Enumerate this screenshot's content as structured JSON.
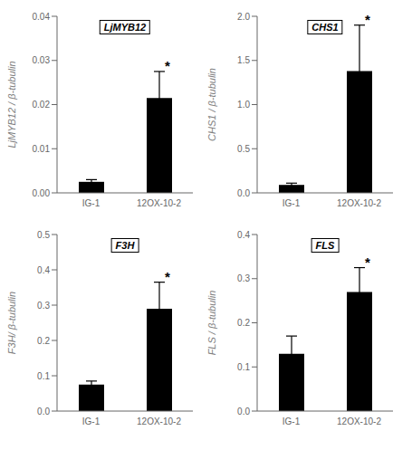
{
  "chart_data": [
    {
      "type": "bar",
      "ylabel": "LjMYB12 / β-tubulin",
      "categories": [
        "IG-1",
        "12OX-10-2"
      ],
      "values": [
        0.0025,
        0.0215
      ],
      "errors": [
        0.0005,
        0.006
      ],
      "ylim": [
        0,
        0.04
      ],
      "yticks": [
        {
          "value": 0,
          "label": "0.00"
        },
        0.01,
        0.02,
        0.03,
        0.04
      ],
      "color": "#000000",
      "grid": false,
      "annotations": [
        {
          "text": "LjMYB12"
        },
        {
          "text": "*",
          "category": "12OX-10-2"
        }
      ]
    },
    {
      "type": "bar",
      "ylabel": "CHS1 / β-tubulin",
      "categories": [
        "IG-1",
        "12OX-10-2"
      ],
      "values": [
        0.09,
        1.38
      ],
      "errors": [
        0.02,
        0.52
      ],
      "ylim": [
        0,
        2.0
      ],
      "yticks": [
        {
          "value": 0,
          "label": "0.0"
        },
        0.5,
        {
          "value": 1,
          "label": "1.0"
        },
        1.5,
        {
          "value": 2,
          "label": "2.0"
        }
      ],
      "color": "#000000",
      "grid": false,
      "annotations": [
        {
          "text": "CHS1"
        },
        {
          "text": "*",
          "category": "12OX-10-2"
        }
      ]
    },
    {
      "type": "bar",
      "ylabel": "F3H/ β-tubulin",
      "categories": [
        "IG-1",
        "12OX-10-2"
      ],
      "values": [
        0.075,
        0.29
      ],
      "errors": [
        0.01,
        0.075
      ],
      "ylim": [
        0,
        0.5
      ],
      "yticks": [
        {
          "value": 0,
          "label": "0.0"
        },
        0.1,
        0.2,
        0.3,
        0.4,
        0.5
      ],
      "color": "#000000",
      "grid": false,
      "annotations": [
        {
          "text": "F3H"
        },
        {
          "text": "*",
          "category": "12OX-10-2"
        }
      ]
    },
    {
      "type": "bar",
      "ylabel": "FLS / β-tubulin",
      "categories": [
        "IG-1",
        "12OX-10-2"
      ],
      "values": [
        0.13,
        0.27
      ],
      "errors": [
        0.04,
        0.055
      ],
      "ylim": [
        0,
        0.4
      ],
      "yticks": [
        {
          "value": 0,
          "label": "0.0"
        },
        0.1,
        0.2,
        0.3,
        0.4
      ],
      "color": "#000000",
      "grid": false,
      "annotations": [
        {
          "text": "FLS"
        },
        {
          "text": "*",
          "category": "12OX-10-2"
        }
      ]
    }
  ]
}
